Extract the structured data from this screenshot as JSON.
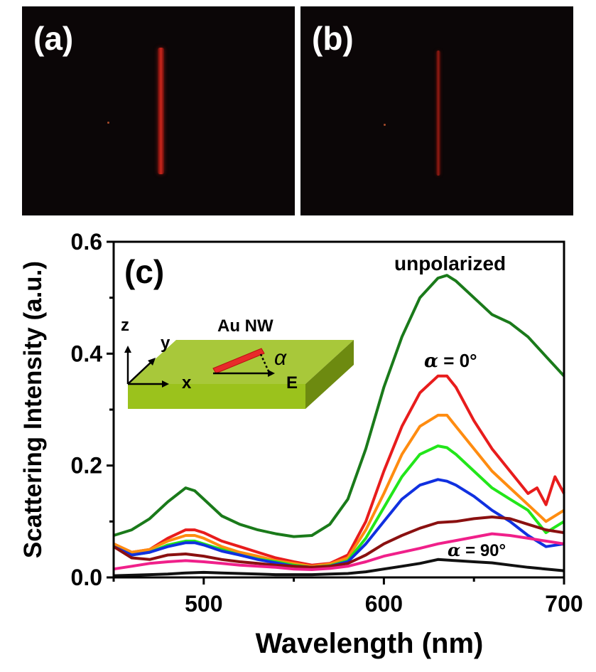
{
  "panel_a": {
    "label": "(a)"
  },
  "panel_b": {
    "label": "(b)"
  },
  "chart_data": {
    "type": "line",
    "panel_label": "(c)",
    "xlabel": "Wavelength (nm)",
    "ylabel": "Scattering Intensity (a.u.)",
    "xlim": [
      450,
      700
    ],
    "ylim": [
      0,
      0.6
    ],
    "xticks": [
      "500",
      "600",
      "700"
    ],
    "yticks": [
      "0.0",
      "0.2",
      "0.4",
      "0.6"
    ],
    "grid": false,
    "annotations": {
      "unpolarized": "unpolarized",
      "alpha_label": "α",
      "alpha_equals": " = 0°",
      "alpha_equals_90": " = 90°"
    },
    "inset": {
      "title": "Au NW",
      "axis_z": "z",
      "axis_y": "y",
      "axis_x": "x",
      "field": "E",
      "angle": "α",
      "slab_color": "#a8c83a",
      "wire_color": "#e82a2a"
    },
    "series": [
      {
        "color": "#1a7a1a",
        "x": [
          450,
          460,
          470,
          480,
          490,
          495,
          500,
          510,
          520,
          530,
          540,
          550,
          560,
          570,
          580,
          590,
          600,
          610,
          620,
          630,
          635,
          640,
          650,
          660,
          670,
          680,
          690,
          700
        ],
        "y": [
          0.075,
          0.085,
          0.105,
          0.135,
          0.16,
          0.155,
          0.14,
          0.11,
          0.095,
          0.085,
          0.078,
          0.073,
          0.075,
          0.095,
          0.14,
          0.23,
          0.34,
          0.43,
          0.5,
          0.535,
          0.54,
          0.53,
          0.5,
          0.47,
          0.455,
          0.43,
          0.395,
          0.36
        ]
      },
      {
        "color": "#e81c1c",
        "x": [
          450,
          460,
          470,
          480,
          490,
          495,
          500,
          510,
          520,
          530,
          540,
          550,
          560,
          570,
          580,
          590,
          600,
          610,
          620,
          630,
          635,
          640,
          650,
          660,
          670,
          680,
          685,
          690,
          695,
          700
        ],
        "y": [
          0.06,
          0.045,
          0.05,
          0.07,
          0.085,
          0.085,
          0.08,
          0.065,
          0.055,
          0.045,
          0.035,
          0.028,
          0.022,
          0.025,
          0.04,
          0.1,
          0.19,
          0.27,
          0.33,
          0.36,
          0.36,
          0.34,
          0.28,
          0.23,
          0.19,
          0.15,
          0.16,
          0.13,
          0.18,
          0.15
        ]
      },
      {
        "color": "#ff8c10",
        "x": [
          450,
          460,
          470,
          480,
          490,
          495,
          500,
          510,
          520,
          530,
          540,
          550,
          560,
          570,
          580,
          590,
          600,
          610,
          620,
          630,
          635,
          640,
          650,
          660,
          670,
          680,
          690,
          700
        ],
        "y": [
          0.06,
          0.045,
          0.05,
          0.065,
          0.075,
          0.075,
          0.07,
          0.055,
          0.045,
          0.038,
          0.03,
          0.025,
          0.02,
          0.024,
          0.035,
          0.085,
          0.15,
          0.22,
          0.27,
          0.29,
          0.29,
          0.27,
          0.23,
          0.19,
          0.16,
          0.13,
          0.1,
          0.12
        ]
      },
      {
        "color": "#22e61a",
        "x": [
          450,
          460,
          470,
          480,
          490,
          495,
          500,
          510,
          520,
          530,
          540,
          550,
          560,
          570,
          580,
          590,
          600,
          610,
          620,
          630,
          635,
          640,
          650,
          660,
          670,
          680,
          690,
          700
        ],
        "y": [
          0.055,
          0.04,
          0.045,
          0.058,
          0.065,
          0.065,
          0.06,
          0.05,
          0.04,
          0.033,
          0.028,
          0.022,
          0.018,
          0.021,
          0.03,
          0.07,
          0.125,
          0.18,
          0.22,
          0.235,
          0.232,
          0.22,
          0.19,
          0.16,
          0.14,
          0.12,
          0.08,
          0.1
        ]
      },
      {
        "color": "#1030e0",
        "x": [
          450,
          460,
          470,
          480,
          490,
          495,
          500,
          510,
          520,
          530,
          540,
          550,
          560,
          570,
          580,
          590,
          600,
          610,
          620,
          630,
          635,
          640,
          650,
          660,
          670,
          680,
          690,
          700
        ],
        "y": [
          0.055,
          0.04,
          0.045,
          0.055,
          0.062,
          0.062,
          0.058,
          0.047,
          0.04,
          0.032,
          0.026,
          0.02,
          0.018,
          0.02,
          0.028,
          0.06,
          0.1,
          0.14,
          0.165,
          0.175,
          0.172,
          0.165,
          0.145,
          0.12,
          0.1,
          0.075,
          0.055,
          0.06
        ]
      },
      {
        "color": "#8a1010",
        "x": [
          450,
          460,
          470,
          480,
          490,
          500,
          510,
          520,
          530,
          540,
          550,
          560,
          570,
          580,
          590,
          600,
          610,
          620,
          630,
          640,
          650,
          660,
          670,
          680,
          690,
          700
        ],
        "y": [
          0.055,
          0.035,
          0.032,
          0.04,
          0.042,
          0.038,
          0.032,
          0.028,
          0.025,
          0.022,
          0.02,
          0.018,
          0.02,
          0.025,
          0.04,
          0.06,
          0.075,
          0.088,
          0.098,
          0.1,
          0.105,
          0.108,
          0.105,
          0.095,
          0.085,
          0.08
        ]
      },
      {
        "color": "#f0208a",
        "x": [
          450,
          460,
          470,
          480,
          490,
          500,
          510,
          520,
          530,
          540,
          550,
          560,
          570,
          580,
          590,
          600,
          610,
          620,
          630,
          640,
          650,
          660,
          670,
          680,
          690,
          700
        ],
        "y": [
          0.015,
          0.02,
          0.025,
          0.028,
          0.03,
          0.028,
          0.025,
          0.022,
          0.02,
          0.018,
          0.015,
          0.014,
          0.016,
          0.02,
          0.028,
          0.038,
          0.045,
          0.052,
          0.06,
          0.066,
          0.072,
          0.078,
          0.075,
          0.07,
          0.065,
          0.06
        ]
      },
      {
        "color": "#111111",
        "x": [
          450,
          460,
          470,
          480,
          490,
          500,
          510,
          520,
          530,
          540,
          550,
          560,
          570,
          580,
          590,
          600,
          610,
          620,
          630,
          640,
          650,
          660,
          670,
          680,
          690,
          700
        ],
        "y": [
          0.003,
          0.004,
          0.005,
          0.006,
          0.008,
          0.009,
          0.008,
          0.007,
          0.006,
          0.005,
          0.005,
          0.005,
          0.006,
          0.007,
          0.01,
          0.015,
          0.02,
          0.025,
          0.032,
          0.03,
          0.028,
          0.026,
          0.022,
          0.018,
          0.015,
          0.012
        ]
      }
    ]
  }
}
